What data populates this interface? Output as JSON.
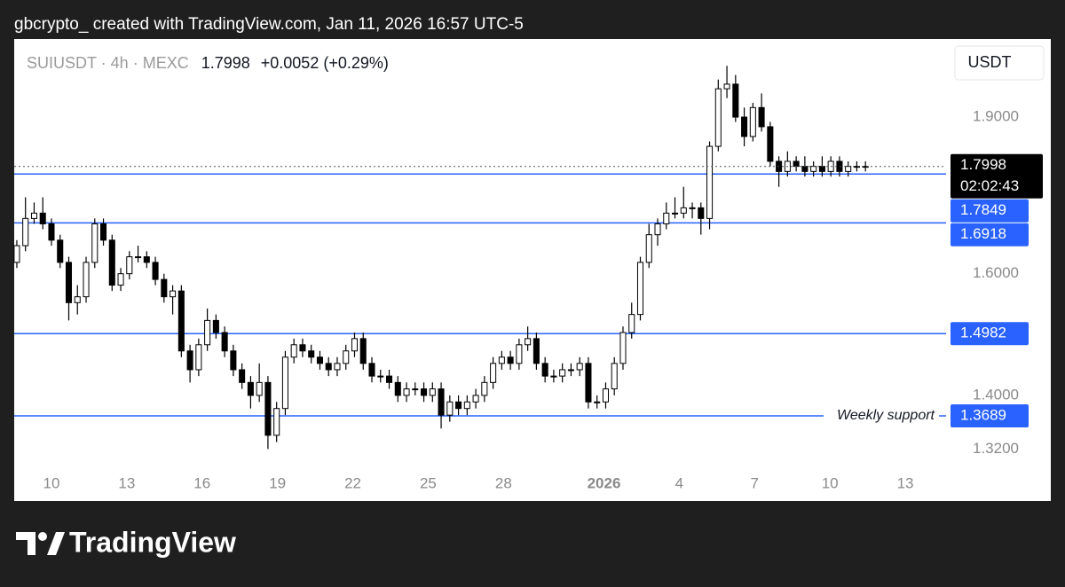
{
  "header": {
    "attribution": "gbcrypto_ created with TradingView.com, Jan 11, 2026 16:57 UTC-5"
  },
  "chart_data": {
    "type": "candlestick",
    "symbol": "SUIUSDT · 4h · MEXC",
    "last_price": 1.7998,
    "change": "+0.0052 (+0.29%)",
    "currency": "USDT",
    "countdown": "02:02:43",
    "open": [
      1.62,
      1.65,
      1.7,
      1.71,
      1.69,
      1.66,
      1.62,
      1.55,
      1.56,
      1.62,
      1.69,
      1.66,
      1.58,
      1.6,
      1.63,
      1.63,
      1.62,
      1.59,
      1.56,
      1.57,
      1.47,
      1.44,
      1.48,
      1.52,
      1.5,
      1.47,
      1.44,
      1.42,
      1.4,
      1.42,
      1.34,
      1.38,
      1.46,
      1.48,
      1.47,
      1.46,
      1.45,
      1.44,
      1.45,
      1.47,
      1.49,
      1.45,
      1.43,
      1.43,
      1.42,
      1.4,
      1.41,
      1.41,
      1.4,
      1.41,
      1.37,
      1.39,
      1.38,
      1.39,
      1.4,
      1.42,
      1.45,
      1.46,
      1.45,
      1.48,
      1.49,
      1.45,
      1.43,
      1.43,
      1.44,
      1.44,
      1.45,
      1.39,
      1.39,
      1.41,
      1.45,
      1.5,
      1.53,
      1.62,
      1.67,
      1.69,
      1.71,
      1.71,
      1.72,
      1.72,
      1.7,
      1.84,
      1.96,
      1.97,
      1.9,
      1.86,
      1.92,
      1.88,
      1.81,
      1.79,
      1.81,
      1.8,
      1.79,
      1.8,
      1.79,
      1.81,
      1.79,
      1.8,
      1.8
    ],
    "high": [
      1.66,
      1.74,
      1.73,
      1.74,
      1.7,
      1.67,
      1.63,
      1.58,
      1.63,
      1.7,
      1.7,
      1.67,
      1.61,
      1.64,
      1.65,
      1.64,
      1.63,
      1.6,
      1.58,
      1.58,
      1.48,
      1.49,
      1.54,
      1.53,
      1.51,
      1.48,
      1.45,
      1.43,
      1.45,
      1.43,
      1.39,
      1.47,
      1.49,
      1.49,
      1.48,
      1.47,
      1.46,
      1.46,
      1.48,
      1.5,
      1.5,
      1.46,
      1.44,
      1.44,
      1.43,
      1.42,
      1.42,
      1.42,
      1.42,
      1.42,
      1.4,
      1.4,
      1.4,
      1.41,
      1.43,
      1.46,
      1.47,
      1.47,
      1.49,
      1.51,
      1.5,
      1.46,
      1.44,
      1.45,
      1.45,
      1.46,
      1.46,
      1.4,
      1.42,
      1.46,
      1.51,
      1.55,
      1.63,
      1.69,
      1.7,
      1.73,
      1.74,
      1.76,
      1.73,
      1.73,
      1.85,
      1.98,
      2.01,
      1.99,
      1.92,
      1.93,
      1.95,
      1.89,
      1.82,
      1.83,
      1.82,
      1.82,
      1.81,
      1.82,
      1.82,
      1.82,
      1.81,
      1.81,
      1.81
    ],
    "low": [
      1.61,
      1.64,
      1.69,
      1.68,
      1.65,
      1.61,
      1.52,
      1.53,
      1.55,
      1.61,
      1.65,
      1.57,
      1.57,
      1.59,
      1.62,
      1.61,
      1.58,
      1.55,
      1.53,
      1.46,
      1.42,
      1.43,
      1.47,
      1.49,
      1.46,
      1.43,
      1.41,
      1.38,
      1.39,
      1.32,
      1.33,
      1.37,
      1.45,
      1.46,
      1.45,
      1.44,
      1.43,
      1.43,
      1.44,
      1.46,
      1.44,
      1.42,
      1.42,
      1.41,
      1.39,
      1.39,
      1.4,
      1.39,
      1.39,
      1.35,
      1.36,
      1.37,
      1.37,
      1.38,
      1.39,
      1.41,
      1.44,
      1.44,
      1.44,
      1.47,
      1.44,
      1.42,
      1.42,
      1.42,
      1.43,
      1.43,
      1.38,
      1.38,
      1.38,
      1.4,
      1.44,
      1.49,
      1.52,
      1.61,
      1.65,
      1.68,
      1.7,
      1.7,
      1.7,
      1.67,
      1.68,
      1.83,
      1.94,
      1.89,
      1.84,
      1.85,
      1.87,
      1.8,
      1.76,
      1.78,
      1.79,
      1.78,
      1.78,
      1.78,
      1.78,
      1.78,
      1.78,
      1.79,
      1.79
    ],
    "close": [
      1.65,
      1.7,
      1.71,
      1.69,
      1.66,
      1.62,
      1.55,
      1.56,
      1.62,
      1.69,
      1.66,
      1.58,
      1.6,
      1.63,
      1.63,
      1.62,
      1.59,
      1.56,
      1.57,
      1.47,
      1.44,
      1.48,
      1.52,
      1.5,
      1.47,
      1.44,
      1.42,
      1.4,
      1.42,
      1.34,
      1.38,
      1.46,
      1.48,
      1.47,
      1.46,
      1.45,
      1.44,
      1.45,
      1.47,
      1.49,
      1.45,
      1.43,
      1.43,
      1.42,
      1.4,
      1.41,
      1.41,
      1.4,
      1.41,
      1.37,
      1.39,
      1.38,
      1.39,
      1.4,
      1.42,
      1.45,
      1.46,
      1.45,
      1.48,
      1.49,
      1.45,
      1.43,
      1.43,
      1.44,
      1.44,
      1.45,
      1.39,
      1.39,
      1.41,
      1.45,
      1.5,
      1.53,
      1.62,
      1.67,
      1.69,
      1.71,
      1.71,
      1.72,
      1.72,
      1.7,
      1.84,
      1.96,
      1.97,
      1.9,
      1.86,
      1.92,
      1.88,
      1.81,
      1.79,
      1.81,
      1.8,
      1.79,
      1.8,
      1.79,
      1.81,
      1.79,
      1.8,
      1.8,
      1.7998
    ],
    "colors": {
      "up": "#ffffff",
      "down": "#000000",
      "wick": "#000000"
    },
    "xlim": [
      -0.2,
      107
    ],
    "xticks": [
      {
        "value": 4,
        "label": "10"
      },
      {
        "value": 12.7,
        "label": "13"
      },
      {
        "value": 21.4,
        "label": "16"
      },
      {
        "value": 30.1,
        "label": "19"
      },
      {
        "value": 38.8,
        "label": "22"
      },
      {
        "value": 47.5,
        "label": "25"
      },
      {
        "value": 56.2,
        "label": "28"
      },
      {
        "value": 67.8,
        "label": "2026"
      },
      {
        "value": 76.5,
        "label": "4"
      },
      {
        "value": 85.2,
        "label": "7"
      },
      {
        "value": 93.9,
        "label": "10"
      },
      {
        "value": 102.6,
        "label": "13"
      }
    ],
    "ylim": [
      1.29,
      2.07
    ],
    "log_scale": true,
    "yticks": [
      {
        "value": 1.9,
        "label": "1.9000"
      },
      {
        "value": 1.6,
        "label": "1.6000"
      },
      {
        "value": 1.4,
        "label": "1.4000"
      },
      {
        "value": 1.32,
        "label": "1.3200"
      }
    ],
    "grid": false,
    "level_color": "#2962ff",
    "levels": [
      {
        "value": 1.7849
      },
      {
        "value": 1.6918
      },
      {
        "value": 1.4982
      },
      {
        "value": 1.3689,
        "note": "Weekly support"
      }
    ]
  },
  "footer": {
    "brand": "TradingView"
  }
}
